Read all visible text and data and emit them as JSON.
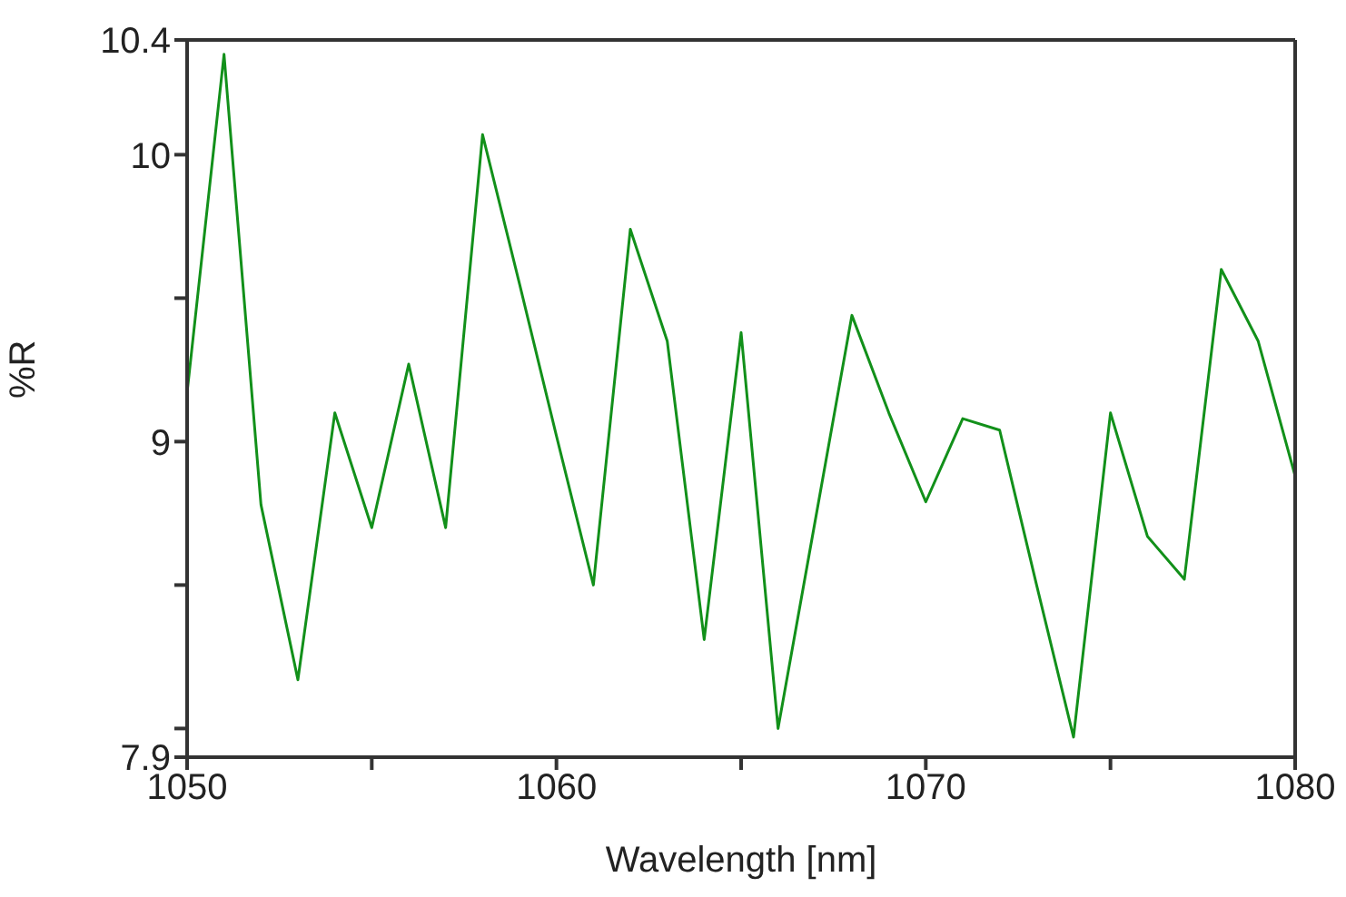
{
  "chart_data": {
    "type": "line",
    "xlabel": "Wavelength [nm]",
    "ylabel": "%R",
    "x": [
      1050,
      1051,
      1052,
      1053,
      1054,
      1055,
      1056,
      1057,
      1058,
      1059,
      1060,
      1061,
      1062,
      1063,
      1064,
      1065,
      1066,
      1067,
      1068,
      1069,
      1070,
      1071,
      1072,
      1073,
      1074,
      1075,
      1076,
      1077,
      1078,
      1079,
      1080
    ],
    "series": [
      {
        "color": "#12901a",
        "values": [
          9.17,
          10.35,
          8.78,
          8.17,
          9.1,
          8.7,
          9.27,
          8.7,
          10.07,
          9.55,
          9.02,
          8.5,
          9.74,
          9.35,
          8.31,
          9.38,
          8.0,
          8.72,
          9.44,
          9.1,
          8.79,
          9.08,
          9.04,
          8.5,
          7.97,
          9.1,
          8.67,
          8.52,
          9.6,
          9.35,
          8.88
        ]
      }
    ],
    "xlim": [
      1050,
      1080
    ],
    "xticks": [
      1050,
      {
        "value": 1055,
        "label": null
      },
      1060,
      {
        "value": 1065,
        "label": null
      },
      1070,
      {
        "value": 1075,
        "label": null
      },
      1080
    ],
    "ylim": [
      7.9,
      10.4
    ],
    "yticks": [
      7.9,
      {
        "value": 8,
        "label": null
      },
      {
        "value": 8.5,
        "label": null
      },
      9,
      {
        "value": 9.5,
        "label": null
      },
      10,
      10.4
    ],
    "grid": false,
    "legend": false,
    "marker": "none",
    "line_style": "solid"
  }
}
